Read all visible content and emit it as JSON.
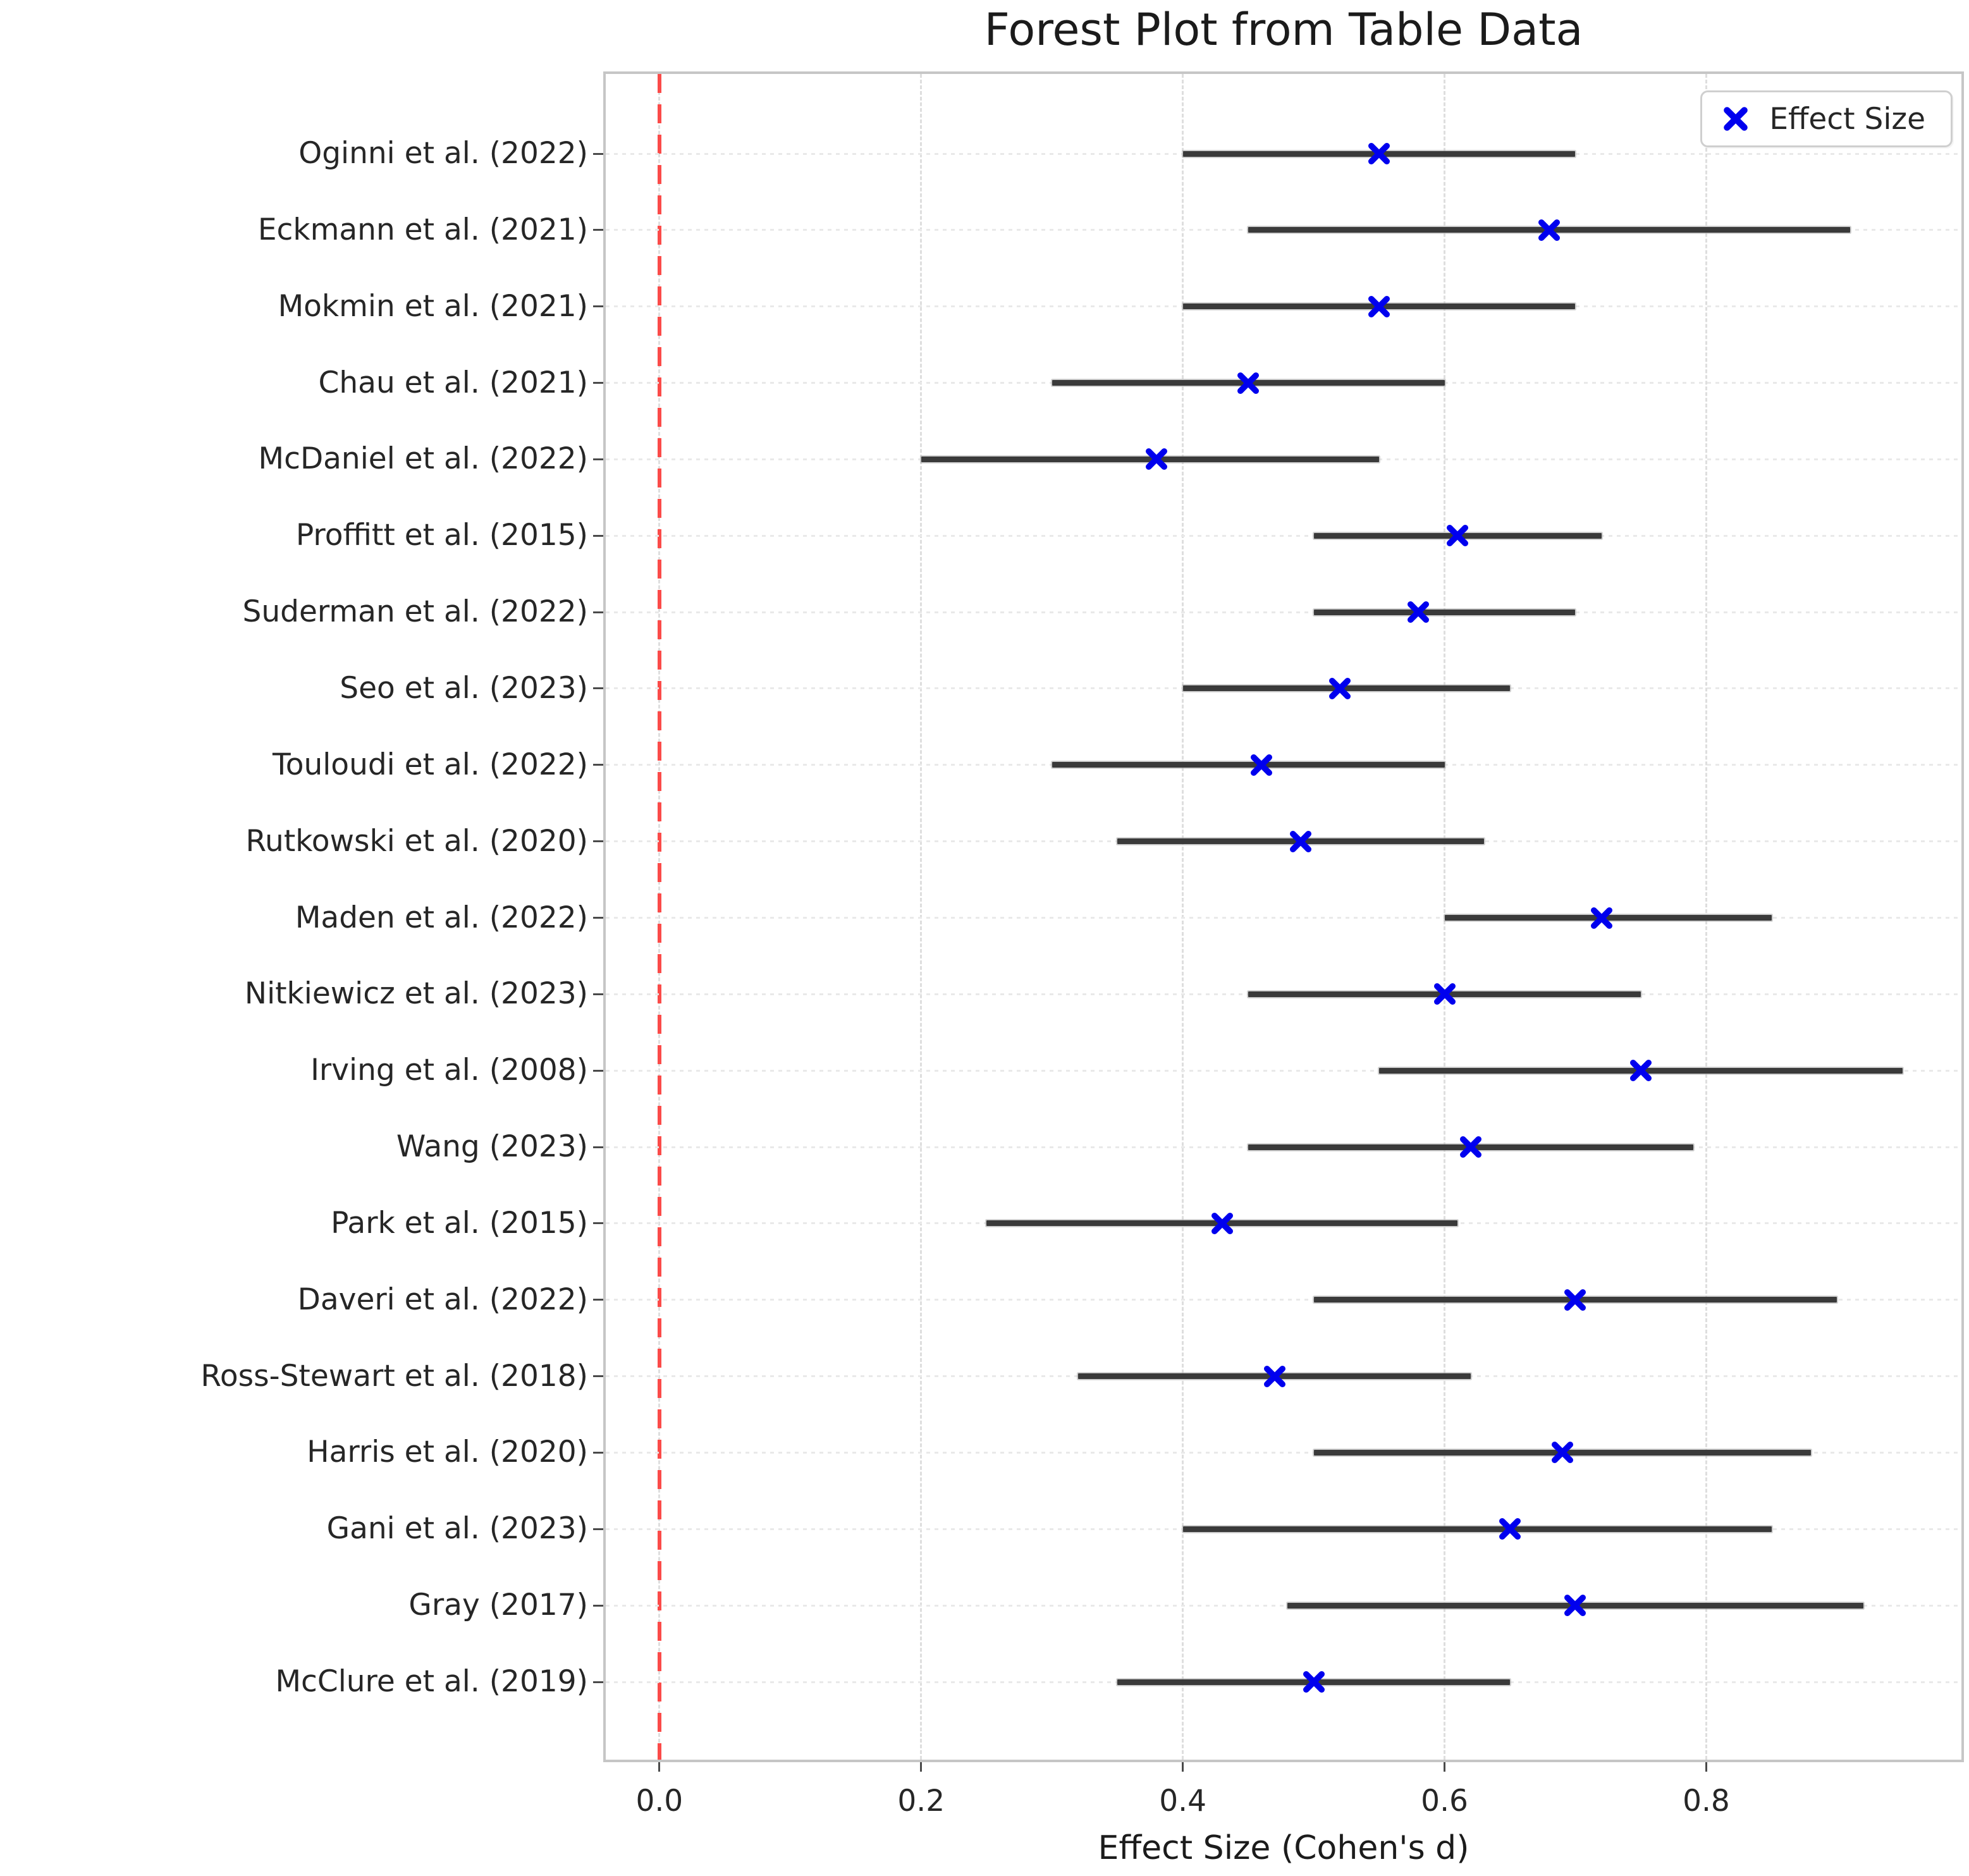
{
  "chart_data": {
    "type": "scatter",
    "subtype": "forest-plot",
    "title": "Forest Plot from Table Data",
    "xlabel": "Effect Size (Cohen's d)",
    "legend": {
      "label": "Effect Size",
      "position": "upper right"
    },
    "x_ticks": [
      0.0,
      0.2,
      0.4,
      0.6,
      0.8
    ],
    "xlim": [
      -0.041,
      0.995
    ],
    "grid": true,
    "reference_line": {
      "x": 0.0,
      "color": "#fb4b49",
      "style": "dashed"
    },
    "marker": {
      "shape": "x",
      "color": "#0000ee"
    },
    "error_bar_color": "#3a3a3a",
    "studies": [
      {
        "label": "Oginni et al. (2022)",
        "effect": 0.55,
        "ci_low": 0.4,
        "ci_high": 0.7
      },
      {
        "label": "Eckmann et al. (2021)",
        "effect": 0.68,
        "ci_low": 0.45,
        "ci_high": 0.91
      },
      {
        "label": "Mokmin et al. (2021)",
        "effect": 0.55,
        "ci_low": 0.4,
        "ci_high": 0.7
      },
      {
        "label": "Chau et al. (2021)",
        "effect": 0.45,
        "ci_low": 0.3,
        "ci_high": 0.6
      },
      {
        "label": "McDaniel et al. (2022)",
        "effect": 0.38,
        "ci_low": 0.2,
        "ci_high": 0.55
      },
      {
        "label": "Proffitt et al. (2015)",
        "effect": 0.61,
        "ci_low": 0.5,
        "ci_high": 0.72
      },
      {
        "label": "Suderman et al. (2022)",
        "effect": 0.58,
        "ci_low": 0.5,
        "ci_high": 0.7
      },
      {
        "label": "Seo et al. (2023)",
        "effect": 0.52,
        "ci_low": 0.4,
        "ci_high": 0.65
      },
      {
        "label": "Touloudi et al. (2022)",
        "effect": 0.46,
        "ci_low": 0.3,
        "ci_high": 0.6
      },
      {
        "label": "Rutkowski et al. (2020)",
        "effect": 0.49,
        "ci_low": 0.35,
        "ci_high": 0.63
      },
      {
        "label": "Maden et al. (2022)",
        "effect": 0.72,
        "ci_low": 0.6,
        "ci_high": 0.85
      },
      {
        "label": "Nitkiewicz et al. (2023)",
        "effect": 0.6,
        "ci_low": 0.45,
        "ci_high": 0.75
      },
      {
        "label": "Irving et al. (2008)",
        "effect": 0.75,
        "ci_low": 0.55,
        "ci_high": 0.95
      },
      {
        "label": "Wang (2023)",
        "effect": 0.62,
        "ci_low": 0.45,
        "ci_high": 0.79
      },
      {
        "label": "Park et al. (2015)",
        "effect": 0.43,
        "ci_low": 0.25,
        "ci_high": 0.61
      },
      {
        "label": "Daveri et al. (2022)",
        "effect": 0.7,
        "ci_low": 0.5,
        "ci_high": 0.9
      },
      {
        "label": "Ross-Stewart et al. (2018)",
        "effect": 0.47,
        "ci_low": 0.32,
        "ci_high": 0.62
      },
      {
        "label": "Harris et al. (2020)",
        "effect": 0.69,
        "ci_low": 0.5,
        "ci_high": 0.88
      },
      {
        "label": "Gani et al. (2023)",
        "effect": 0.65,
        "ci_low": 0.4,
        "ci_high": 0.85
      },
      {
        "label": "Gray (2017)",
        "effect": 0.7,
        "ci_low": 0.48,
        "ci_high": 0.92
      },
      {
        "label": "McClure et al. (2019)",
        "effect": 0.5,
        "ci_low": 0.35,
        "ci_high": 0.65
      }
    ]
  }
}
